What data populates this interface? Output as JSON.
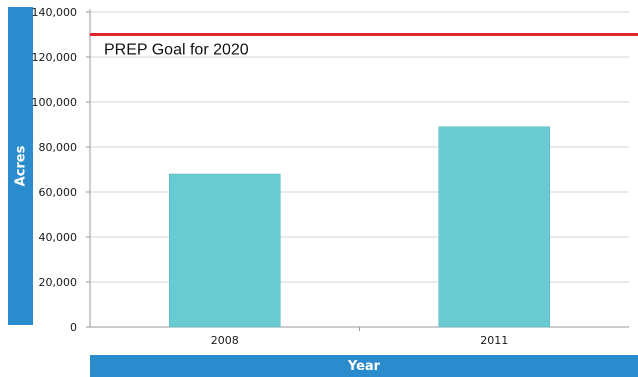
{
  "chart_data": {
    "type": "bar",
    "title": "",
    "xlabel": "Year",
    "ylabel": "Acres",
    "categories": [
      "2008",
      "2011"
    ],
    "values": [
      68000,
      89000
    ],
    "ylim": [
      0,
      140000
    ],
    "yticks": [
      0,
      20000,
      40000,
      60000,
      80000,
      100000,
      120000,
      140000
    ],
    "ytick_labels": [
      "0",
      "20,000",
      "40,000",
      "60,000",
      "80,000",
      "100,000",
      "120,000",
      "140,000"
    ],
    "grid": true,
    "goal_line": {
      "value": 130000,
      "label": "PREP Goal for 2020"
    },
    "colors": {
      "bar": "#69cbd1",
      "goal": "#e0262b",
      "label_band": "#2a8ccd",
      "grid": "#d4d4d4"
    }
  }
}
